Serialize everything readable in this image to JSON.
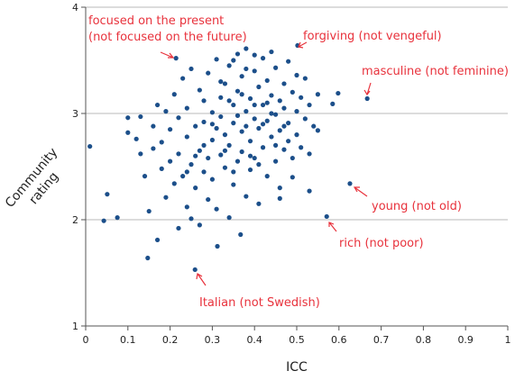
{
  "chart_data": {
    "type": "scatter",
    "x_label": "ICC",
    "y_label": [
      "Community",
      "rating"
    ],
    "color": "#1c4f8a",
    "xlim": [
      0,
      1
    ],
    "ylim": [
      1,
      4
    ],
    "xticks": [
      0,
      0.1,
      0.2,
      0.3,
      0.4,
      0.5,
      0.6,
      0.7,
      0.8,
      0.9,
      1
    ],
    "yticks": [
      1,
      2,
      3,
      4
    ],
    "grid": true,
    "annotations": [
      [
        "focused on the present",
        "(not focused on the future)"
      ],
      [
        "forgiving (not vengeful)"
      ],
      [
        "masculine (not feminine)"
      ],
      [
        "young (not old)"
      ],
      [
        "rich (not poor)"
      ],
      [
        "Italian (not Swedish)"
      ]
    ],
    "x": [
      0.214,
      0.502,
      0.667,
      0.626,
      0.571,
      0.259,
      0.01,
      0.043,
      0.051,
      0.075,
      0.147,
      0.312,
      0.367,
      0.598,
      0.585,
      0.1,
      0.1,
      0.12,
      0.13,
      0.13,
      0.14,
      0.15,
      0.16,
      0.16,
      0.17,
      0.17,
      0.18,
      0.18,
      0.19,
      0.19,
      0.2,
      0.2,
      0.21,
      0.21,
      0.22,
      0.22,
      0.22,
      0.23,
      0.23,
      0.24,
      0.24,
      0.24,
      0.25,
      0.25,
      0.25,
      0.26,
      0.26,
      0.27,
      0.27,
      0.27,
      0.28,
      0.28,
      0.28,
      0.29,
      0.29,
      0.29,
      0.3,
      0.3,
      0.3,
      0.31,
      0.31,
      0.31,
      0.32,
      0.32,
      0.32,
      0.33,
      0.33,
      0.33,
      0.34,
      0.34,
      0.34,
      0.35,
      0.35,
      0.35,
      0.36,
      0.36,
      0.36,
      0.37,
      0.37,
      0.37,
      0.38,
      0.38,
      0.38,
      0.39,
      0.39,
      0.39,
      0.4,
      0.4,
      0.4,
      0.41,
      0.41,
      0.41,
      0.42,
      0.42,
      0.42,
      0.43,
      0.43,
      0.43,
      0.44,
      0.44,
      0.44,
      0.45,
      0.45,
      0.45,
      0.46,
      0.46,
      0.46,
      0.47,
      0.47,
      0.47,
      0.48,
      0.48,
      0.48,
      0.49,
      0.49,
      0.5,
      0.5,
      0.5,
      0.51,
      0.51,
      0.52,
      0.52,
      0.53,
      0.53,
      0.54,
      0.55,
      0.55,
      0.36,
      0.38,
      0.34,
      0.4,
      0.42,
      0.44,
      0.37,
      0.33,
      0.39,
      0.41,
      0.35,
      0.3,
      0.28,
      0.26,
      0.24,
      0.45,
      0.47,
      0.43,
      0.32,
      0.53,
      0.46,
      0.49,
      0.38,
      0.4,
      0.35
    ],
    "values": [
      3.52,
      3.64,
      3.14,
      2.34,
      2.03,
      1.53,
      2.69,
      1.99,
      2.24,
      2.02,
      1.64,
      1.75,
      1.86,
      3.19,
      3.09,
      2.96,
      2.82,
      2.76,
      2.62,
      2.97,
      2.41,
      2.08,
      2.67,
      2.88,
      1.81,
      3.08,
      2.48,
      2.73,
      2.21,
      3.02,
      2.55,
      2.85,
      2.34,
      3.18,
      1.92,
      2.62,
      2.96,
      3.33,
      2.41,
      2.12,
      2.78,
      3.05,
      2.52,
      3.42,
      2.01,
      2.88,
      2.3,
      3.22,
      2.65,
      1.95,
      2.45,
      3.12,
      2.92,
      2.58,
      2.19,
      3.38,
      2.75,
      3.01,
      2.38,
      2.86,
      3.51,
      2.1,
      2.61,
      3.15,
      2.97,
      2.49,
      3.28,
      2.8,
      2.02,
      3.45,
      2.7,
      3.08,
      2.33,
      2.91,
      3.56,
      2.55,
      3.21,
      2.83,
      3.35,
      2.64,
      3.02,
      2.22,
      3.61,
      2.74,
      3.14,
      2.47,
      2.95,
      3.4,
      2.58,
      3.25,
      2.86,
      2.15,
      3.08,
      3.52,
      2.68,
      2.93,
      3.31,
      2.41,
      3.17,
      2.78,
      3.58,
      2.99,
      2.55,
      3.43,
      3.12,
      2.84,
      2.3,
      3.28,
      2.66,
      3.05,
      2.91,
      3.49,
      2.74,
      3.2,
      2.58,
      3.02,
      3.36,
      2.8,
      3.15,
      2.68,
      2.95,
      3.33,
      3.08,
      2.62,
      2.88,
      3.18,
      2.84,
      2.98,
      2.88,
      3.12,
      3.08,
      2.9,
      3.0,
      3.18,
      2.65,
      2.6,
      2.52,
      2.45,
      2.9,
      2.7,
      2.6,
      2.45,
      2.7,
      2.88,
      3.1,
      3.3,
      2.27,
      2.2,
      2.4,
      3.42,
      3.55,
      3.5
    ]
  }
}
